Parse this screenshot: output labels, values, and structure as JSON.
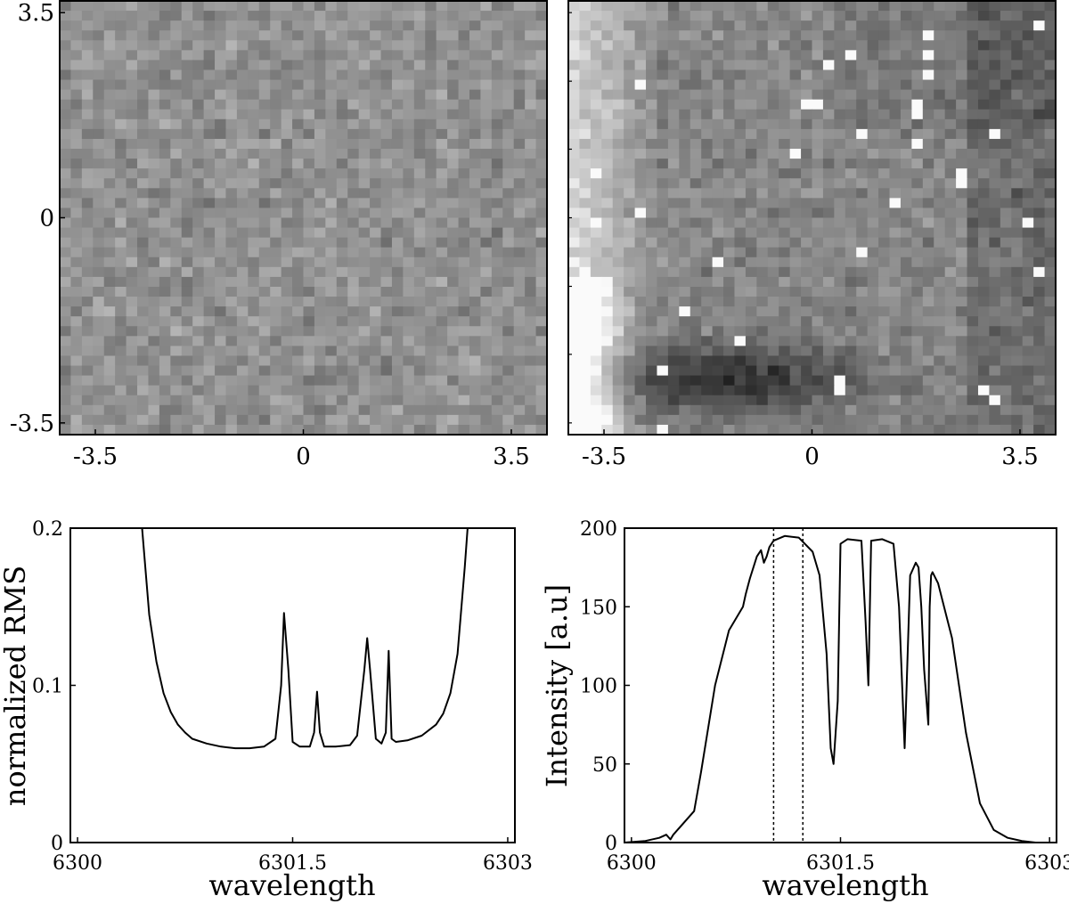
{
  "chart_data": [
    {
      "type": "heatmap",
      "colormap": "grayscale",
      "x_ticks": [
        "-3.5",
        "0",
        "3.5"
      ],
      "y_ticks": [
        "3.5",
        "0",
        "-3.5"
      ],
      "xlim": [
        -4.1,
        4.1
      ],
      "ylim": [
        -3.7,
        3.7
      ],
      "grid_size": [
        44,
        44
      ],
      "description_of_values": "noise-like map, uniform mid-gray"
    },
    {
      "type": "heatmap",
      "colormap": "grayscale",
      "x_ticks": [
        "-3.5",
        "0",
        "3.5"
      ],
      "xlim": [
        -4.1,
        4.1
      ],
      "ylim": [
        -3.7,
        3.7
      ],
      "grid_size": [
        44,
        44
      ],
      "description_of_values": "noise with bright left edge, dark band near bottom, scattered bright pixels"
    },
    {
      "type": "line",
      "xlabel": "wavelength",
      "ylabel": "normalized RMS",
      "x_ticks": [
        "6300",
        "6301.5",
        "6303"
      ],
      "y_ticks": [
        "0",
        "0.1",
        "0.2"
      ],
      "xlim": [
        6299.95,
        6303.05
      ],
      "ylim": [
        0,
        0.2
      ],
      "series": [
        {
          "x": [
            6300.45,
            6300.5,
            6300.55,
            6300.6,
            6300.65,
            6300.7,
            6300.75,
            6300.8,
            6300.9,
            6301.0,
            6301.1,
            6301.2,
            6301.3,
            6301.38,
            6301.42,
            6301.44,
            6301.47,
            6301.5,
            6301.55,
            6301.62,
            6301.65,
            6301.67,
            6301.69,
            6301.72,
            6301.8,
            6301.9,
            6301.95,
            6302.0,
            6302.02,
            6302.04,
            6302.08,
            6302.12,
            6302.15,
            6302.17,
            6302.19,
            6302.22,
            6302.3,
            6302.4,
            6302.5,
            6302.55,
            6302.6,
            6302.65,
            6302.7,
            6302.72
          ],
          "y": [
            0.2,
            0.145,
            0.115,
            0.095,
            0.083,
            0.075,
            0.07,
            0.066,
            0.063,
            0.061,
            0.06,
            0.06,
            0.061,
            0.066,
            0.1,
            0.146,
            0.11,
            0.064,
            0.061,
            0.061,
            0.07,
            0.096,
            0.07,
            0.061,
            0.061,
            0.062,
            0.068,
            0.11,
            0.13,
            0.11,
            0.066,
            0.063,
            0.07,
            0.122,
            0.066,
            0.064,
            0.065,
            0.068,
            0.075,
            0.082,
            0.095,
            0.12,
            0.175,
            0.2
          ]
        }
      ]
    },
    {
      "type": "line",
      "xlabel": "wavelength",
      "ylabel": "Intensity [a.u]",
      "x_ticks": [
        "6300",
        "6301.5",
        "6303"
      ],
      "y_ticks": [
        "0",
        "50",
        "100",
        "150",
        "200"
      ],
      "xlim": [
        6299.95,
        6303.05
      ],
      "ylim": [
        0,
        200
      ],
      "vlines": [
        6301.02,
        6301.23
      ],
      "series": [
        {
          "x": [
            6299.95,
            6300.1,
            6300.2,
            6300.25,
            6300.28,
            6300.3,
            6300.45,
            6300.5,
            6300.6,
            6300.7,
            6300.8,
            6300.82,
            6300.85,
            6300.9,
            6300.93,
            6300.95,
            6300.97,
            6300.99,
            6301.02,
            6301.1,
            6301.2,
            6301.3,
            6301.35,
            6301.4,
            6301.43,
            6301.45,
            6301.48,
            6301.5,
            6301.55,
            6301.65,
            6301.68,
            6301.7,
            6301.72,
            6301.8,
            6301.88,
            6301.92,
            6301.96,
            6302.0,
            6302.04,
            6302.06,
            6302.08,
            6302.1,
            6302.13,
            6302.14,
            6302.15,
            6302.16,
            6302.2,
            6302.3,
            6302.4,
            6302.5,
            6302.6,
            6302.7,
            6302.8,
            6302.9,
            6303.05
          ],
          "y": [
            0,
            1,
            3,
            5,
            2,
            5,
            20,
            45,
            100,
            135,
            150,
            158,
            168,
            182,
            186,
            178,
            182,
            188,
            192,
            195,
            194,
            185,
            170,
            120,
            60,
            50,
            90,
            190,
            193,
            192,
            140,
            100,
            192,
            193,
            190,
            150,
            60,
            170,
            178,
            175,
            150,
            110,
            75,
            150,
            170,
            172,
            165,
            130,
            70,
            25,
            8,
            3,
            1,
            0,
            0
          ]
        }
      ]
    }
  ]
}
